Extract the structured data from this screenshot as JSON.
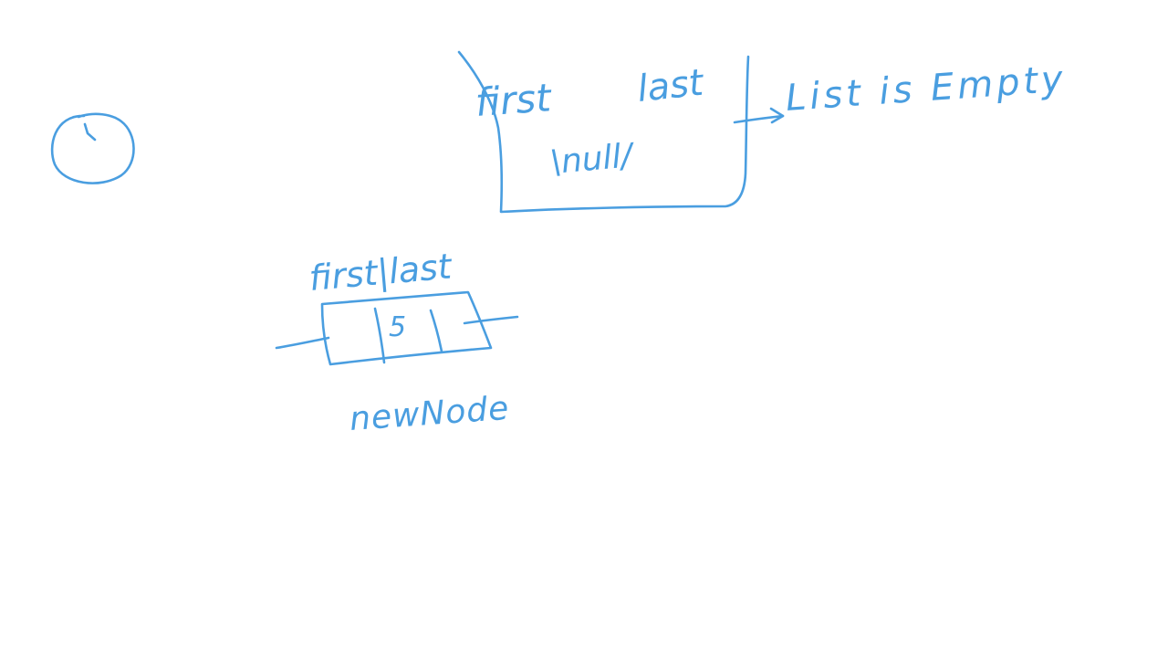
{
  "colors": {
    "ink": "#4a9ee0",
    "background": "#ffffff"
  },
  "step_marker": {
    "label": "1"
  },
  "empty_list": {
    "first_label": "first",
    "last_label": "last",
    "null_label": "\\null/",
    "status_text": "List is Empty"
  },
  "new_node": {
    "header_label": "first|last",
    "data_value": "5",
    "caption": "newNode"
  }
}
